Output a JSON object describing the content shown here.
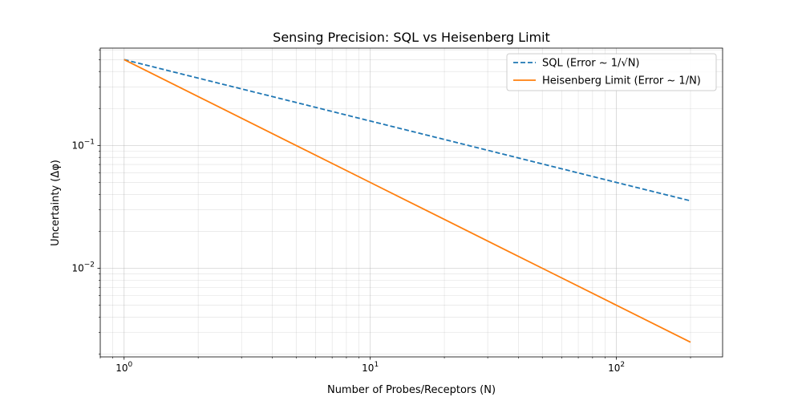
{
  "chart_data": {
    "type": "line",
    "title": "Sensing Precision: SQL vs Heisenberg Limit",
    "xlabel": "Number of Probes/Receptors (N)",
    "ylabel": "Uncertainty (Δφ)",
    "xscale": "log",
    "yscale": "log",
    "xlim": [
      0.8,
      270
    ],
    "ylim": [
      0.0019,
      0.62
    ],
    "grid": "both (major and minor)",
    "legend_position": "top-right",
    "x_ticks": [
      {
        "value": 1,
        "base": "10",
        "exp": "0"
      },
      {
        "value": 10,
        "base": "10",
        "exp": "1"
      },
      {
        "value": 100,
        "base": "10",
        "exp": "2"
      }
    ],
    "y_ticks": [
      {
        "value": 0.1,
        "base": "10",
        "exp": "−1"
      },
      {
        "value": 0.01,
        "base": "10",
        "exp": "−2"
      }
    ],
    "series": [
      {
        "name": "SQL (Error ~ 1/√N)",
        "color": "#1f77b4",
        "style": "dashed",
        "x": [
          1,
          2,
          5,
          10,
          20,
          50,
          100,
          200
        ],
        "y": [
          0.5,
          0.3536,
          0.2236,
          0.1581,
          0.1118,
          0.0707,
          0.05,
          0.0354
        ]
      },
      {
        "name": "Heisenberg Limit (Error ~ 1/N)",
        "color": "#ff7f0e",
        "style": "solid",
        "x": [
          1,
          2,
          5,
          10,
          20,
          50,
          100,
          200
        ],
        "y": [
          0.5,
          0.25,
          0.1,
          0.05,
          0.025,
          0.01,
          0.005,
          0.0025
        ]
      }
    ]
  }
}
